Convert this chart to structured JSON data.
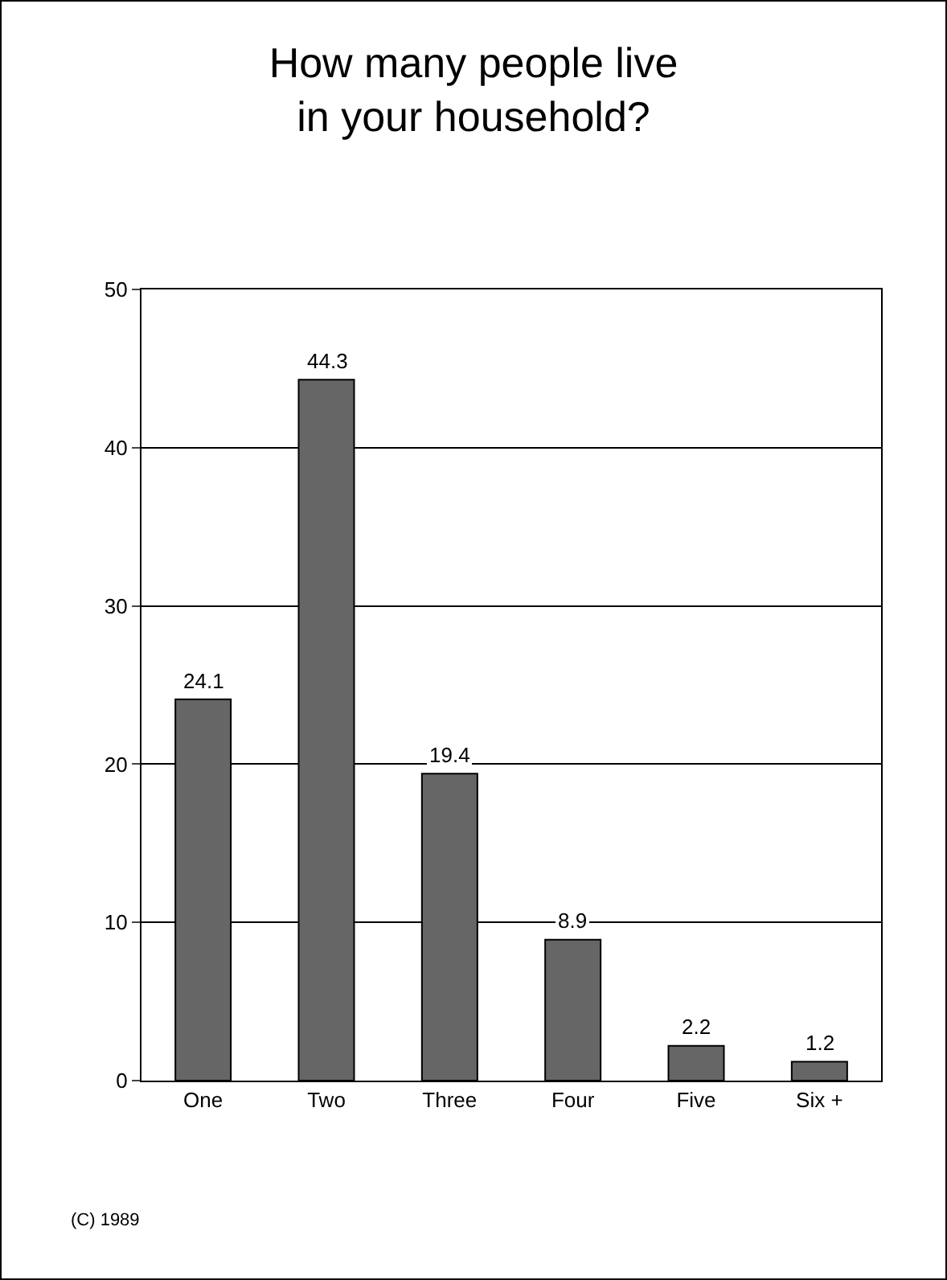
{
  "chart_data": {
    "type": "bar",
    "title": "How many people live\nin your household?",
    "categories": [
      "One",
      "Two",
      "Three",
      "Four",
      "Five",
      "Six +"
    ],
    "values": [
      24.1,
      44.3,
      19.4,
      8.9,
      2.2,
      1.2
    ],
    "color": "#666666",
    "ylim": [
      0,
      50
    ],
    "yticks": [
      0,
      10,
      20,
      30,
      40,
      50
    ],
    "grid": "y",
    "legend": false,
    "data_labels": true,
    "annotations": [
      "(C) 1989"
    ]
  }
}
